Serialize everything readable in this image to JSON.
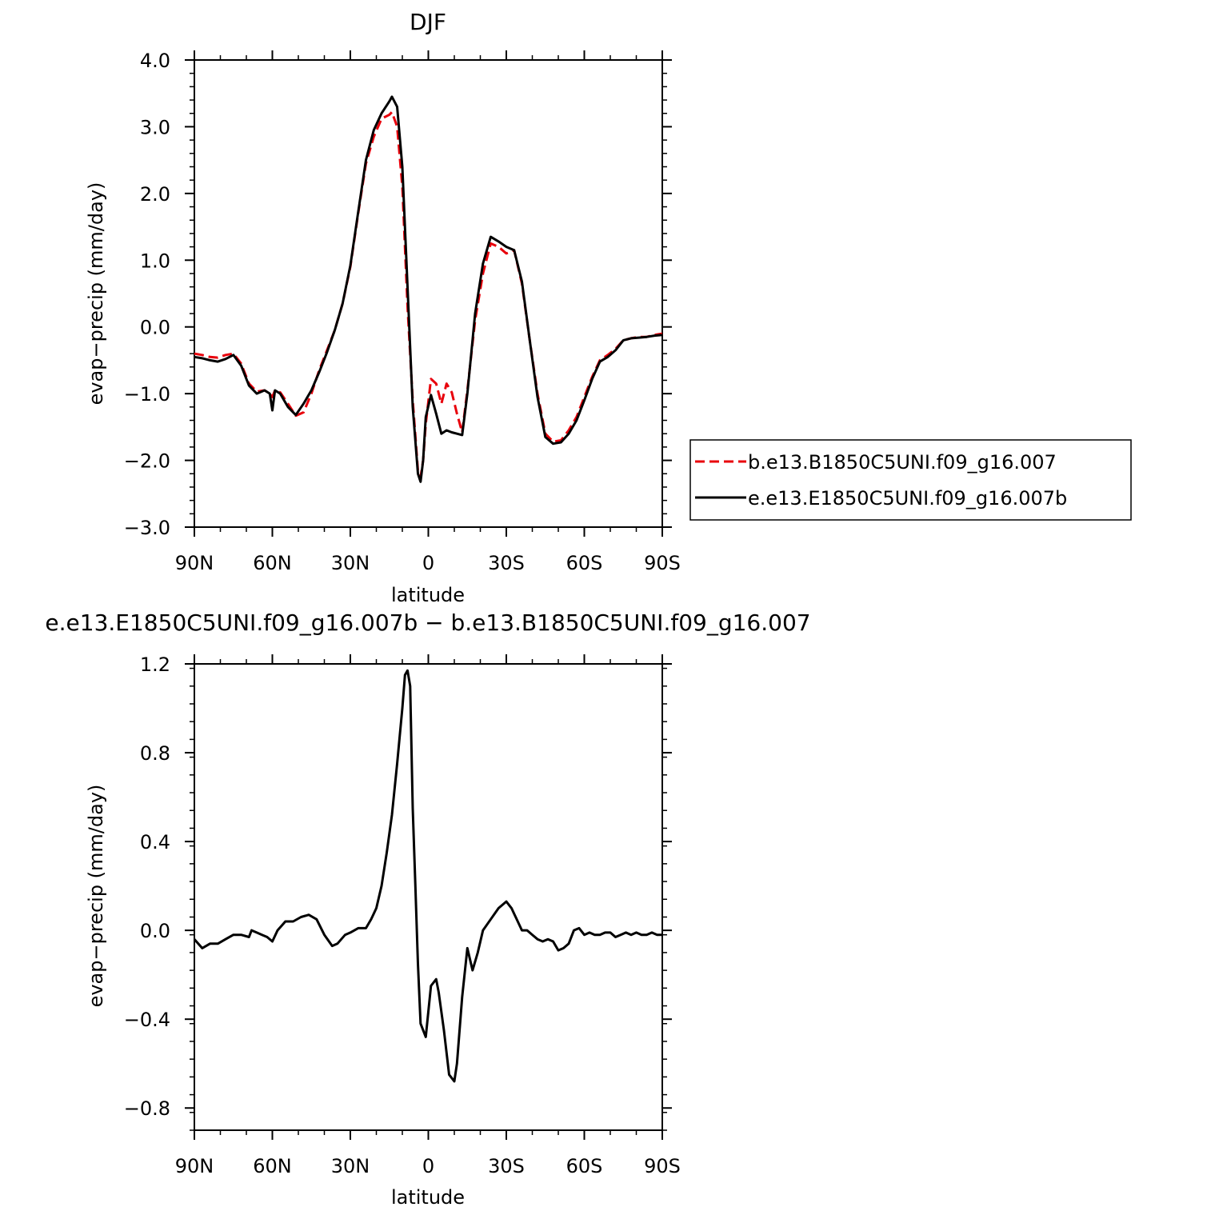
{
  "chart_data": [
    {
      "type": "line",
      "title": "DJF",
      "xlabel": "latitude",
      "ylabel": "evap−precip (mm/day)",
      "xlim": [
        90,
        -90
      ],
      "ylim": [
        -3.0,
        4.0
      ],
      "x_ticks": [
        90,
        60,
        30,
        0,
        -30,
        -60,
        -90
      ],
      "x_tick_labels": [
        "90N",
        "60N",
        "30N",
        "0",
        "30S",
        "60S",
        "90S"
      ],
      "y_ticks": [
        -3.0,
        -2.0,
        -1.0,
        0.0,
        1.0,
        2.0,
        3.0,
        4.0
      ],
      "y_tick_labels": [
        "−3.0",
        "−2.0",
        "−1.0",
        "0.0",
        "1.0",
        "2.0",
        "3.0",
        "4.0"
      ],
      "legend": {
        "placement": "right",
        "entries": [
          "b.e13.B1850C5UNI.f09_g16.007",
          "e.e13.E1850C5UNI.f09_g16.007b"
        ]
      },
      "series": [
        {
          "name": "b.e13.B1850C5UNI.f09_g16.007",
          "color": "#e8000b",
          "dash": "dashed",
          "x": [
            90,
            87,
            84,
            81,
            78,
            75,
            72,
            69,
            66,
            63,
            61,
            60,
            59,
            57,
            54,
            51,
            48,
            45,
            42,
            39,
            36,
            33,
            30,
            27,
            24,
            21,
            18,
            15,
            14,
            12,
            10,
            8,
            6,
            4,
            3,
            2,
            1,
            -1,
            -3,
            -5,
            -7,
            -9,
            -11,
            -13,
            -15,
            -18,
            -21,
            -24,
            -27,
            -30,
            -33,
            -36,
            -39,
            -42,
            -45,
            -48,
            -51,
            -54,
            -57,
            -60,
            -63,
            -66,
            -69,
            -72,
            -75,
            -78,
            -81,
            -84,
            -87,
            -90
          ],
          "y": [
            -0.4,
            -0.42,
            -0.45,
            -0.46,
            -0.42,
            -0.4,
            -0.55,
            -0.85,
            -0.97,
            -0.95,
            -1.0,
            -1.05,
            -0.95,
            -0.98,
            -1.15,
            -1.33,
            -1.28,
            -1.0,
            -0.65,
            -0.35,
            -0.05,
            0.35,
            0.9,
            1.7,
            2.45,
            2.85,
            3.12,
            3.18,
            3.22,
            3.0,
            2.1,
            0.3,
            -1.1,
            -2.15,
            -2.25,
            -2.0,
            -1.45,
            -0.78,
            -0.85,
            -1.15,
            -0.85,
            -0.98,
            -1.3,
            -1.58,
            -0.95,
            0.1,
            0.8,
            1.25,
            1.2,
            1.1,
            1.15,
            0.65,
            -0.2,
            -1.0,
            -1.6,
            -1.72,
            -1.7,
            -1.55,
            -1.35,
            -1.05,
            -0.75,
            -0.5,
            -0.42,
            -0.33,
            -0.2,
            -0.17,
            -0.15,
            -0.15,
            -0.12,
            -0.1
          ]
        },
        {
          "name": "e.e13.E1850C5UNI.f09_g16.007b",
          "color": "#000000",
          "dash": "solid",
          "x": [
            90,
            87,
            84,
            81,
            78,
            75,
            72,
            69,
            66,
            63,
            61,
            60,
            59,
            57,
            54,
            51,
            48,
            45,
            42,
            39,
            36,
            33,
            30,
            27,
            24,
            21,
            18,
            15,
            14,
            12,
            10,
            8,
            6,
            4,
            3,
            2,
            1,
            -1,
            -3,
            -5,
            -7,
            -9,
            -11,
            -13,
            -15,
            -18,
            -21,
            -24,
            -27,
            -30,
            -33,
            -36,
            -39,
            -42,
            -45,
            -48,
            -51,
            -54,
            -57,
            -60,
            -63,
            -66,
            -69,
            -72,
            -75,
            -78,
            -81,
            -84,
            -87,
            -90
          ],
          "y": [
            -0.45,
            -0.47,
            -0.5,
            -0.52,
            -0.48,
            -0.42,
            -0.58,
            -0.88,
            -1.0,
            -0.95,
            -1.0,
            -1.25,
            -0.95,
            -1.0,
            -1.2,
            -1.32,
            -1.15,
            -0.95,
            -0.68,
            -0.38,
            -0.05,
            0.35,
            0.92,
            1.72,
            2.5,
            2.95,
            3.2,
            3.38,
            3.45,
            3.3,
            2.4,
            0.6,
            -1.2,
            -2.2,
            -2.32,
            -2.0,
            -1.35,
            -1.02,
            -1.3,
            -1.6,
            -1.55,
            -1.58,
            -1.6,
            -1.62,
            -1.0,
            0.2,
            0.95,
            1.35,
            1.28,
            1.2,
            1.15,
            0.68,
            -0.2,
            -1.05,
            -1.65,
            -1.75,
            -1.73,
            -1.6,
            -1.4,
            -1.1,
            -0.78,
            -0.52,
            -0.45,
            -0.35,
            -0.2,
            -0.17,
            -0.16,
            -0.15,
            -0.13,
            -0.12
          ]
        }
      ]
    },
    {
      "type": "line",
      "title": "e.e13.E1850C5UNI.f09_g16.007b − b.e13.B1850C5UNI.f09_g16.007",
      "xlabel": "latitude",
      "ylabel": "evap−precip (mm/day)",
      "xlim": [
        90,
        -90
      ],
      "ylim": [
        -0.9,
        1.2
      ],
      "x_ticks": [
        90,
        60,
        30,
        0,
        -30,
        -60,
        -90
      ],
      "x_tick_labels": [
        "90N",
        "60N",
        "30N",
        "0",
        "30S",
        "60S",
        "90S"
      ],
      "y_ticks": [
        -0.8,
        -0.4,
        0.0,
        0.4,
        0.8,
        1.2
      ],
      "y_tick_labels": [
        "−0.8",
        "−0.4",
        "0.0",
        "0.4",
        "0.8",
        "1.2"
      ],
      "series": [
        {
          "color": "#000000",
          "dash": "solid",
          "x": [
            90,
            87,
            84,
            81,
            78,
            75,
            72,
            69,
            68,
            66,
            64,
            62,
            60,
            58,
            55,
            52,
            49,
            46,
            43,
            40,
            37,
            35,
            32,
            30,
            27,
            24,
            22,
            20,
            18,
            16,
            14,
            12,
            10,
            9,
            8,
            7,
            6,
            5,
            4,
            3,
            1,
            -1,
            -3,
            -4,
            -6,
            -8,
            -10,
            -11,
            -13,
            -15,
            -17,
            -19,
            -21,
            -24,
            -27,
            -30,
            -32,
            -34,
            -36,
            -38,
            -40,
            -42,
            -44,
            -46,
            -48,
            -50,
            -52,
            -54,
            -56,
            -58,
            -60,
            -62,
            -64,
            -66,
            -68,
            -70,
            -72,
            -74,
            -76,
            -78,
            -80,
            -82,
            -84,
            -86,
            -88,
            -90
          ],
          "y": [
            -0.04,
            -0.08,
            -0.06,
            -0.06,
            -0.04,
            -0.02,
            -0.02,
            -0.03,
            0.0,
            -0.01,
            -0.02,
            -0.03,
            -0.05,
            0.0,
            0.04,
            0.04,
            0.06,
            0.07,
            0.05,
            -0.02,
            -0.07,
            -0.06,
            -0.02,
            -0.01,
            0.01,
            0.01,
            0.05,
            0.1,
            0.2,
            0.35,
            0.52,
            0.75,
            1.0,
            1.15,
            1.17,
            1.1,
            0.55,
            0.2,
            -0.15,
            -0.42,
            -0.48,
            -0.25,
            -0.22,
            -0.28,
            -0.45,
            -0.65,
            -0.68,
            -0.6,
            -0.3,
            -0.08,
            -0.18,
            -0.1,
            0.0,
            0.05,
            0.1,
            0.13,
            0.1,
            0.05,
            0.0,
            0.0,
            -0.02,
            -0.04,
            -0.05,
            -0.04,
            -0.05,
            -0.09,
            -0.08,
            -0.06,
            0.0,
            0.01,
            -0.02,
            -0.01,
            -0.02,
            -0.02,
            -0.01,
            -0.01,
            -0.03,
            -0.02,
            -0.01,
            -0.02,
            -0.01,
            -0.02,
            -0.02,
            -0.01,
            -0.02,
            -0.02
          ]
        }
      ]
    }
  ]
}
